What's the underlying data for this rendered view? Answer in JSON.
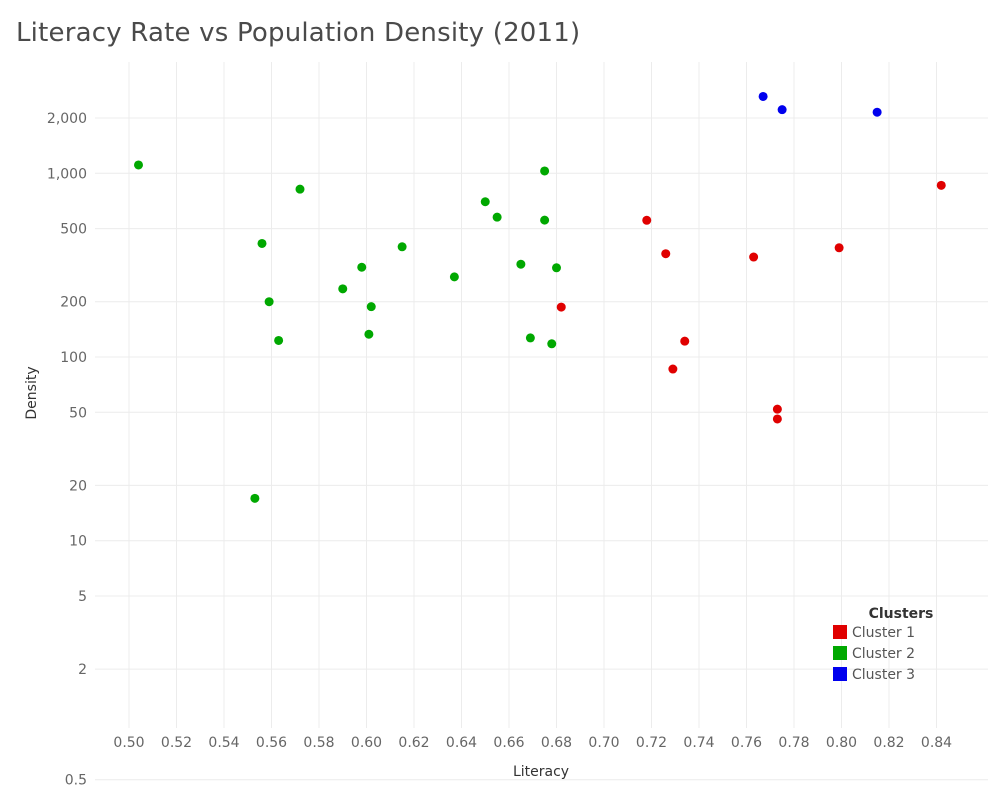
{
  "chart_data": {
    "type": "scatter",
    "title": "Literacy Rate vs Population Density (2011)",
    "xlabel": "Literacy",
    "ylabel": "Density",
    "xlim": [
      0.49,
      0.855
    ],
    "ylim": [
      0.4,
      3700
    ],
    "yscale": "log",
    "grid": true,
    "x_ticks": [
      0.5,
      0.52,
      0.54,
      0.56,
      0.58,
      0.6,
      0.62,
      0.64,
      0.66,
      0.68,
      0.7,
      0.72,
      0.74,
      0.76,
      0.78,
      0.8,
      0.82,
      0.84
    ],
    "x_tick_labels": [
      "0.50",
      "0.52",
      "0.54",
      "0.56",
      "0.58",
      "0.60",
      "0.62",
      "0.64",
      "0.66",
      "0.68",
      "0.70",
      "0.72",
      "0.74",
      "0.76",
      "0.78",
      "0.80",
      "0.82",
      "0.84"
    ],
    "y_ticks": [
      0.5,
      2,
      5,
      10,
      20,
      50,
      100,
      200,
      500,
      1000,
      2000
    ],
    "y_tick_labels": [
      "0.5",
      "2",
      "5",
      "10",
      "20",
      "50",
      "100",
      "200",
      "500",
      "1,000",
      "2,000"
    ],
    "legend": {
      "title": "Clusters",
      "position": "bottom-right"
    },
    "series": [
      {
        "name": "Cluster 1",
        "color": "#e00000",
        "points": [
          {
            "x": 0.682,
            "y": 187
          },
          {
            "x": 0.718,
            "y": 555
          },
          {
            "x": 0.726,
            "y": 365
          },
          {
            "x": 0.729,
            "y": 86
          },
          {
            "x": 0.734,
            "y": 122
          },
          {
            "x": 0.763,
            "y": 350
          },
          {
            "x": 0.773,
            "y": 52
          },
          {
            "x": 0.773,
            "y": 46
          },
          {
            "x": 0.799,
            "y": 393
          },
          {
            "x": 0.842,
            "y": 860
          }
        ]
      },
      {
        "name": "Cluster 2",
        "color": "#00a800",
        "points": [
          {
            "x": 0.504,
            "y": 1110
          },
          {
            "x": 0.553,
            "y": 17
          },
          {
            "x": 0.556,
            "y": 415
          },
          {
            "x": 0.559,
            "y": 200
          },
          {
            "x": 0.563,
            "y": 123
          },
          {
            "x": 0.572,
            "y": 820
          },
          {
            "x": 0.59,
            "y": 235
          },
          {
            "x": 0.598,
            "y": 308
          },
          {
            "x": 0.601,
            "y": 133
          },
          {
            "x": 0.602,
            "y": 188
          },
          {
            "x": 0.615,
            "y": 398
          },
          {
            "x": 0.637,
            "y": 273
          },
          {
            "x": 0.65,
            "y": 700
          },
          {
            "x": 0.655,
            "y": 577
          },
          {
            "x": 0.665,
            "y": 320
          },
          {
            "x": 0.669,
            "y": 127
          },
          {
            "x": 0.675,
            "y": 1030
          },
          {
            "x": 0.675,
            "y": 556
          },
          {
            "x": 0.678,
            "y": 118
          },
          {
            "x": 0.68,
            "y": 306
          }
        ]
      },
      {
        "name": "Cluster 3",
        "color": "#0000ee",
        "points": [
          {
            "x": 0.767,
            "y": 2620
          },
          {
            "x": 0.775,
            "y": 2220
          },
          {
            "x": 0.815,
            "y": 2150
          }
        ]
      }
    ]
  }
}
